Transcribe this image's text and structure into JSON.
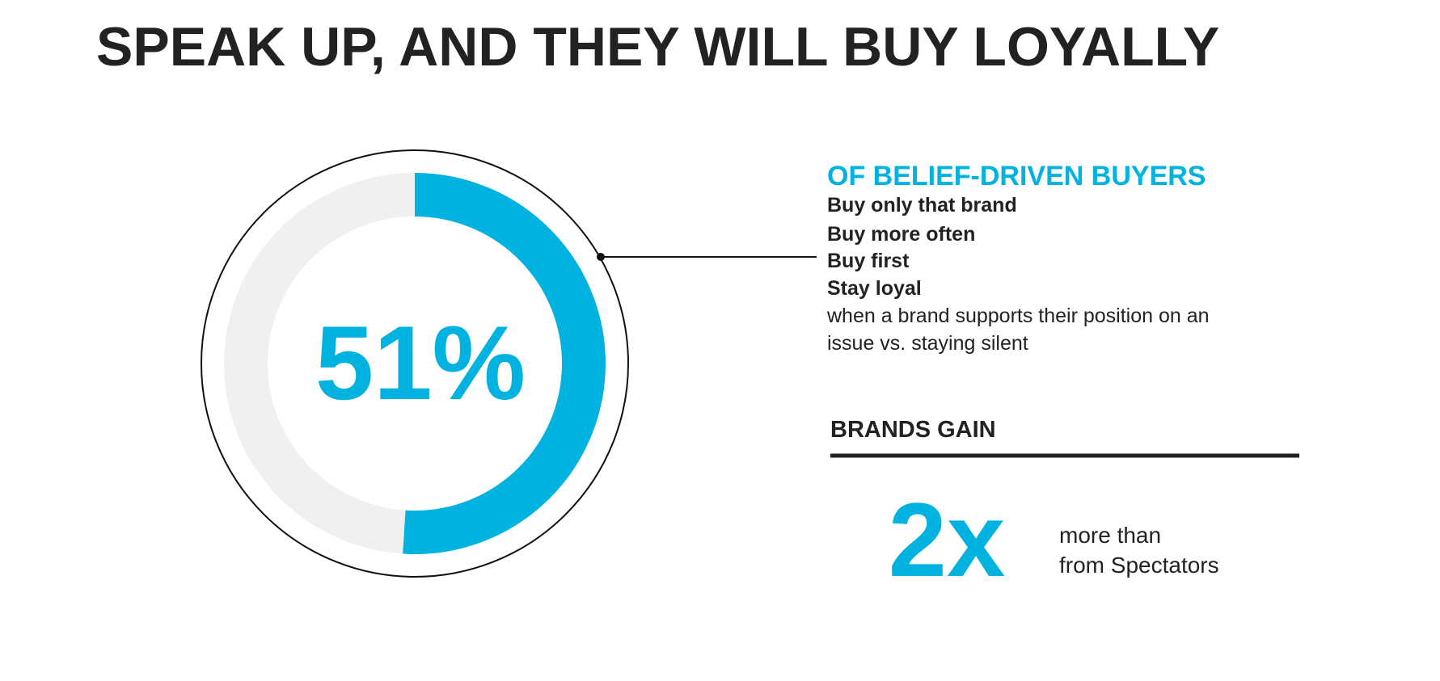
{
  "title": "SPEAK UP, AND THEY WILL BUY LOYALLY",
  "gauge": {
    "value": 51,
    "label": "51%",
    "color": "#00b2e0"
  },
  "buyers": {
    "heading": "OF BELIEF-DRIVEN BUYERS",
    "actions": [
      "Buy only that brand",
      "Buy more often",
      "Buy first",
      "Stay loyal"
    ],
    "note": [
      "when a brand supports their position on an",
      "issue vs. staying silent"
    ]
  },
  "gain": {
    "heading": "BRANDS GAIN",
    "figure": "2x",
    "text": [
      "more than",
      "from Spectators"
    ]
  }
}
